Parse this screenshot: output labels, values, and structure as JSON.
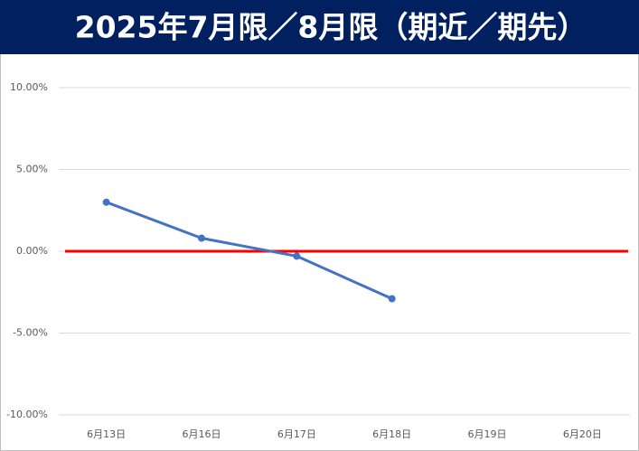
{
  "chart_data": {
    "type": "line",
    "title": "2025年7月限／8月限（期近／期先）",
    "categories": [
      "6月13日",
      "6月16日",
      "6月17日",
      "6月18日",
      "6月19日",
      "6月20日"
    ],
    "series": [
      {
        "color": "#4472c4",
        "values": [
          3.0,
          0.8,
          -0.3,
          -2.9,
          null,
          null
        ]
      }
    ],
    "reference_line": {
      "value": 0,
      "color": "#ff0000"
    },
    "ylim": [
      -10,
      10
    ],
    "yticks": [
      {
        "value": -10,
        "label": "-10.00%"
      },
      {
        "value": -5,
        "label": "-5.00%"
      },
      {
        "value": 0,
        "label": "0.00%"
      },
      {
        "value": 5,
        "label": "5.00%"
      },
      {
        "value": 10,
        "label": "10.00%"
      }
    ],
    "grid": true
  }
}
